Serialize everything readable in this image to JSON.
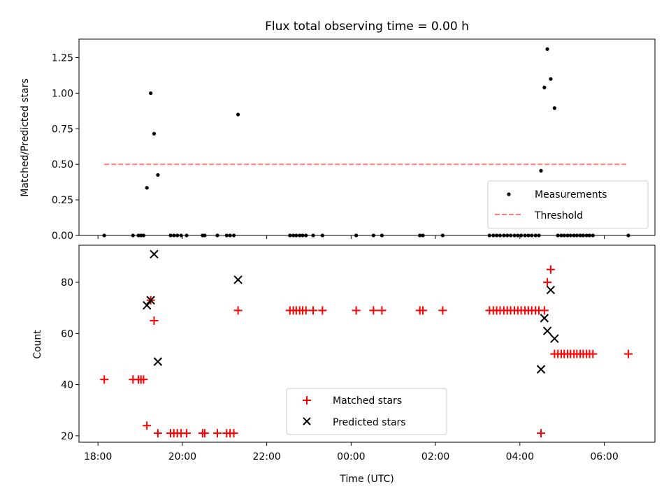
{
  "chart_data": [
    {
      "type": "scatter",
      "title": "Flux total observing time = 0.00 h",
      "xlabel": "",
      "ylabel": "Matched/Predicted stars",
      "xlim": [
        17.55,
        31.2
      ],
      "ylim": [
        0,
        1.38
      ],
      "yticks": [
        0.0,
        0.25,
        0.5,
        0.75,
        1.0,
        1.25
      ],
      "ytick_labels": [
        "0.00",
        "0.25",
        "0.50",
        "0.75",
        "1.00",
        "1.25"
      ],
      "legend_position": "lower-right",
      "series": [
        {
          "name": "Measurements",
          "kind": "points",
          "color": "#000000",
          "points": [
            [
              18.15,
              0.0
            ],
            [
              18.83,
              0.0
            ],
            [
              18.96,
              0.0
            ],
            [
              19.02,
              0.0
            ],
            [
              19.08,
              0.0
            ],
            [
              19.16,
              0.335
            ],
            [
              19.25,
              1.0
            ],
            [
              19.33,
              0.715
            ],
            [
              19.42,
              0.425
            ],
            [
              19.72,
              0.0
            ],
            [
              19.8,
              0.0
            ],
            [
              19.88,
              0.0
            ],
            [
              19.97,
              0.0
            ],
            [
              20.1,
              0.0
            ],
            [
              20.48,
              0.0
            ],
            [
              20.53,
              0.0
            ],
            [
              20.83,
              0.0
            ],
            [
              21.05,
              0.0
            ],
            [
              21.13,
              0.0
            ],
            [
              21.22,
              0.0
            ],
            [
              21.32,
              0.85
            ],
            [
              22.55,
              0.0
            ],
            [
              22.63,
              0.0
            ],
            [
              22.7,
              0.0
            ],
            [
              22.78,
              0.0
            ],
            [
              22.85,
              0.0
            ],
            [
              22.93,
              0.0
            ],
            [
              23.1,
              0.0
            ],
            [
              23.32,
              0.0
            ],
            [
              24.12,
              0.0
            ],
            [
              24.53,
              0.0
            ],
            [
              24.73,
              0.0
            ],
            [
              25.63,
              0.0
            ],
            [
              25.7,
              0.0
            ],
            [
              26.17,
              0.0
            ],
            [
              27.28,
              0.0
            ],
            [
              27.37,
              0.0
            ],
            [
              27.45,
              0.0
            ],
            [
              27.53,
              0.0
            ],
            [
              27.62,
              0.0
            ],
            [
              27.7,
              0.0
            ],
            [
              27.78,
              0.0
            ],
            [
              27.87,
              0.0
            ],
            [
              27.95,
              0.0
            ],
            [
              28.03,
              0.0
            ],
            [
              28.12,
              0.0
            ],
            [
              28.2,
              0.0
            ],
            [
              28.28,
              0.0
            ],
            [
              28.37,
              0.0
            ],
            [
              28.45,
              0.0
            ],
            [
              28.5,
              0.455
            ],
            [
              28.58,
              1.04
            ],
            [
              28.65,
              1.31
            ],
            [
              28.73,
              1.1
            ],
            [
              28.82,
              0.895
            ],
            [
              28.9,
              0.0
            ],
            [
              28.98,
              0.0
            ],
            [
              29.05,
              0.0
            ],
            [
              29.13,
              0.0
            ],
            [
              29.2,
              0.0
            ],
            [
              29.28,
              0.0
            ],
            [
              29.35,
              0.0
            ],
            [
              29.43,
              0.0
            ],
            [
              29.5,
              0.0
            ],
            [
              29.58,
              0.0
            ],
            [
              29.65,
              0.0
            ],
            [
              29.73,
              0.0
            ],
            [
              30.57,
              0.0
            ]
          ]
        },
        {
          "name": "Threshold",
          "kind": "line",
          "color": "#ff7f7f",
          "points": [
            [
              18.15,
              0.5
            ],
            [
              30.57,
              0.5
            ]
          ]
        }
      ]
    },
    {
      "type": "scatter",
      "title": "",
      "xlabel": "Time (UTC)",
      "ylabel": "Count",
      "xlim": [
        17.55,
        31.2
      ],
      "ylim": [
        17.5,
        94.5
      ],
      "yticks": [
        20,
        40,
        60,
        80
      ],
      "ytick_labels": [
        "20",
        "40",
        "60",
        "80"
      ],
      "xticks": [
        18,
        20,
        22,
        24,
        26,
        28,
        30
      ],
      "xtick_labels": [
        "18:00",
        "20:00",
        "22:00",
        "00:00",
        "02:00",
        "04:00",
        "06:00"
      ],
      "legend_position": "lower-center",
      "series": [
        {
          "name": "Matched stars",
          "kind": "plus",
          "color": "#ff0000",
          "points": [
            [
              18.15,
              42
            ],
            [
              18.83,
              42
            ],
            [
              18.96,
              42
            ],
            [
              19.02,
              42
            ],
            [
              19.08,
              42
            ],
            [
              19.16,
              24
            ],
            [
              19.25,
              73
            ],
            [
              19.33,
              65
            ],
            [
              19.42,
              21
            ],
            [
              19.72,
              21
            ],
            [
              19.8,
              21
            ],
            [
              19.88,
              21
            ],
            [
              19.97,
              21
            ],
            [
              20.1,
              21
            ],
            [
              20.48,
              21
            ],
            [
              20.53,
              21
            ],
            [
              20.83,
              21
            ],
            [
              21.05,
              21
            ],
            [
              21.13,
              21
            ],
            [
              21.22,
              21
            ],
            [
              21.32,
              69
            ],
            [
              22.55,
              69
            ],
            [
              22.63,
              69
            ],
            [
              22.7,
              69
            ],
            [
              22.78,
              69
            ],
            [
              22.85,
              69
            ],
            [
              22.93,
              69
            ],
            [
              23.1,
              69
            ],
            [
              23.32,
              69
            ],
            [
              24.12,
              69
            ],
            [
              24.53,
              69
            ],
            [
              24.73,
              69
            ],
            [
              25.63,
              69
            ],
            [
              25.7,
              69
            ],
            [
              26.17,
              69
            ],
            [
              27.28,
              69
            ],
            [
              27.37,
              69
            ],
            [
              27.45,
              69
            ],
            [
              27.53,
              69
            ],
            [
              27.62,
              69
            ],
            [
              27.7,
              69
            ],
            [
              27.78,
              69
            ],
            [
              27.87,
              69
            ],
            [
              27.95,
              69
            ],
            [
              28.03,
              69
            ],
            [
              28.12,
              69
            ],
            [
              28.2,
              69
            ],
            [
              28.28,
              69
            ],
            [
              28.37,
              69
            ],
            [
              28.45,
              69
            ],
            [
              28.5,
              21
            ],
            [
              28.58,
              69
            ],
            [
              28.65,
              80
            ],
            [
              28.73,
              85
            ],
            [
              28.82,
              52
            ],
            [
              28.9,
              52
            ],
            [
              28.98,
              52
            ],
            [
              29.05,
              52
            ],
            [
              29.13,
              52
            ],
            [
              29.2,
              52
            ],
            [
              29.28,
              52
            ],
            [
              29.35,
              52
            ],
            [
              29.43,
              52
            ],
            [
              29.5,
              52
            ],
            [
              29.58,
              52
            ],
            [
              29.65,
              52
            ],
            [
              29.73,
              52
            ],
            [
              30.57,
              52
            ]
          ]
        },
        {
          "name": "Predicted stars",
          "kind": "x",
          "color": "#000000",
          "points": [
            [
              19.16,
              71
            ],
            [
              19.25,
              73
            ],
            [
              19.33,
              91
            ],
            [
              19.42,
              49
            ],
            [
              21.32,
              81
            ],
            [
              28.5,
              46
            ],
            [
              28.58,
              66
            ],
            [
              28.65,
              61
            ],
            [
              28.73,
              77
            ],
            [
              28.82,
              58
            ]
          ]
        }
      ]
    }
  ]
}
